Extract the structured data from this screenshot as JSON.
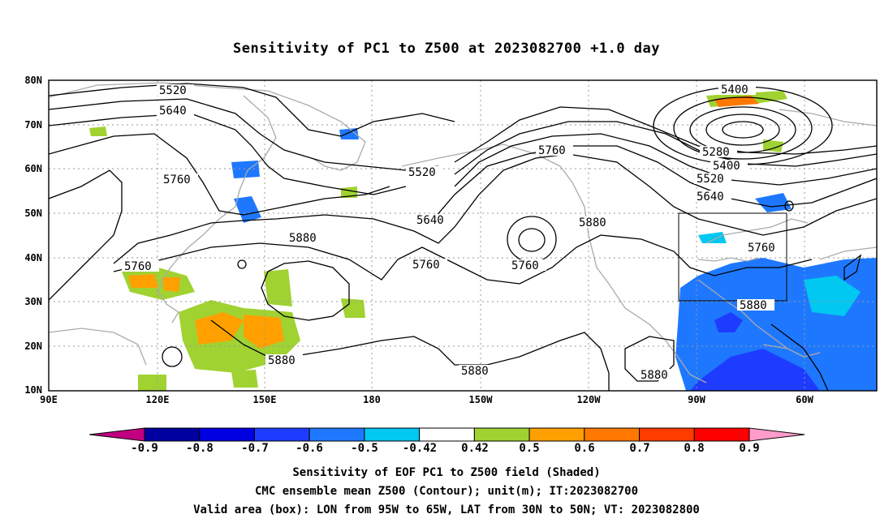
{
  "title": "Sensitivity of PC1 to Z500 at 2023082700 +1.0 day",
  "lat_labels": [
    "80N",
    "70N",
    "60N",
    "50N",
    "40N",
    "30N",
    "20N",
    "10N"
  ],
  "lon_labels": [
    "90E",
    "120E",
    "150E",
    "180",
    "150W",
    "120W",
    "90W",
    "60W"
  ],
  "colorbar": {
    "labels": [
      "-0.9",
      "-0.8",
      "-0.7",
      "-0.6",
      "-0.5",
      "-0.42",
      "0.42",
      "0.5",
      "0.6",
      "0.7",
      "0.8",
      "0.9"
    ],
    "colors": [
      "#c00080",
      "#0000a0",
      "#0000e0",
      "#1e3cff",
      "#1e78ff",
      "#00c8f0",
      "#ffffff",
      "#a0d232",
      "#ffa000",
      "#ff7800",
      "#ff3c00",
      "#ff0000",
      "#ff9ccc"
    ]
  },
  "contour_labels": [
    "5520",
    "5640",
    "5760",
    "5880",
    "5400",
    "5280"
  ],
  "valid_box": {
    "lon": [
      "95W",
      "65W"
    ],
    "lat": [
      "30N",
      "50N"
    ]
  },
  "footer": {
    "line1": "Sensitivity of EOF PC1 to Z500 field (Shaded)",
    "line2": "CMC ensemble mean Z500 (Contour); unit(m); IT:2023082700",
    "line3": "Valid area (box): LON from 95W to 65W, LAT from 30N to 50N; VT: 2023082800"
  },
  "style": {
    "contour_color": "#000000",
    "coast_color": "#aaaaaa",
    "grid_color": "#999999"
  }
}
